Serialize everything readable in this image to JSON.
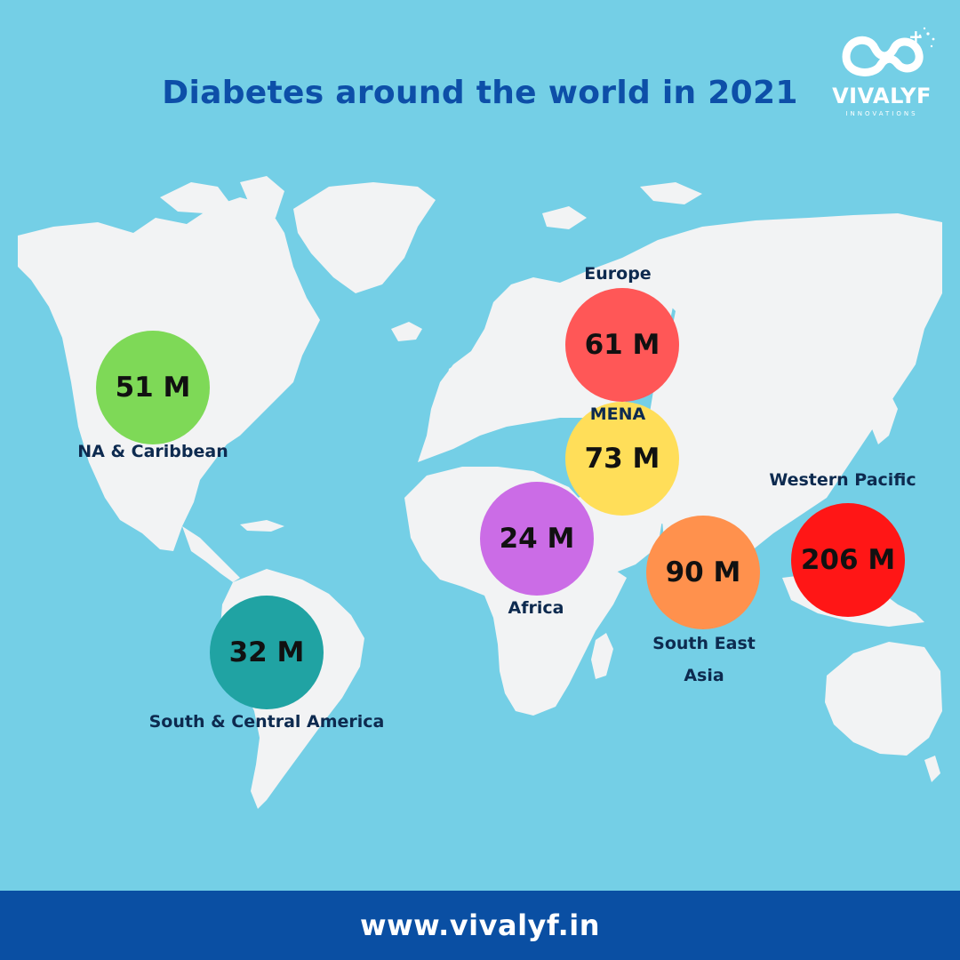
{
  "title": "Diabetes around the world in 2021",
  "logo": {
    "name": "VIVALYF",
    "subtitle": "INNOVATIONS"
  },
  "regions": [
    {
      "id": "na-caribbean",
      "label": "NA & Caribbean",
      "value_text": "51 M",
      "value_millions": 51,
      "color": "#7ed957"
    },
    {
      "id": "south-central-america",
      "label": "South & Central America",
      "value_text": "32 M",
      "value_millions": 32,
      "color": "#20a3a3"
    },
    {
      "id": "europe",
      "label": "Europe",
      "value_text": "61 M",
      "value_millions": 61,
      "color": "#ff5757"
    },
    {
      "id": "mena",
      "label": "MENA",
      "value_text": "73 M",
      "value_millions": 73,
      "color": "#ffde59"
    },
    {
      "id": "africa",
      "label": "Africa",
      "value_text": "24 M",
      "value_millions": 24,
      "color": "#cb6ce6"
    },
    {
      "id": "south-east-asia",
      "label_line1": "South East",
      "label_line2": "Asia",
      "value_text": "90 M",
      "value_millions": 90,
      "color": "#ff914d"
    },
    {
      "id": "western-pacific",
      "label": "Western Pacific",
      "value_text": "206 M",
      "value_millions": 206,
      "color": "#ff1616"
    }
  ],
  "footer": {
    "url": "www.vivalyf.in"
  },
  "colors": {
    "background": "#74cfe6",
    "land": "#f2f3f4",
    "title": "#0d4fa8",
    "footer": "#0a4fa3"
  }
}
